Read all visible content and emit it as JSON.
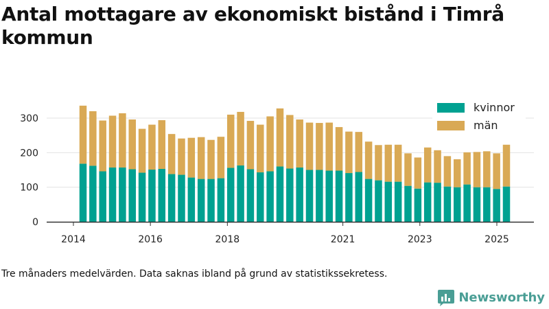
{
  "title": "Antal mottagare av ekonomiskt bistånd i Timrå kommun",
  "caption": "Tre månaders medelvärden. Data saknas ibland på grund av statistikssekretess.",
  "brand": {
    "name": "Newsworthy",
    "icon": "newsworthy-logo-icon"
  },
  "colors": {
    "kvinnor": "#00a191",
    "man": "#d9a955",
    "grid": "#e3e3e3",
    "axis": "#333333"
  },
  "chart_data": {
    "type": "bar",
    "stacked": true,
    "title": "Antal mottagare av ekonomiskt bistånd i Timrå kommun",
    "xlabel": "",
    "ylabel": "",
    "ylim": [
      0,
      350
    ],
    "yticks": [
      0,
      100,
      200,
      300
    ],
    "xticks": [
      "2014",
      "2016",
      "2018",
      "2021",
      "2023",
      "2025"
    ],
    "grid": true,
    "legend": "top-right",
    "categories": [
      "2014-Q2",
      "2014-Q3",
      "2014-Q4",
      "2015-Q1",
      "2015-Q2",
      "2015-Q3",
      "2015-Q4",
      "2016-Q1",
      "2016-Q2",
      "2016-Q3",
      "2016-Q4",
      "2017-Q1",
      "2017-Q2",
      "2017-Q3",
      "2017-Q4",
      "2018-Q1",
      "2018-Q2",
      "2018-Q3",
      "2018-Q4",
      "2019-Q1",
      "2019-Q2",
      "2019-Q3",
      "2019-Q4",
      "2020-Q1",
      "2020-Q2",
      "2020-Q3",
      "2020-Q4",
      "2021-Q1",
      "2021-Q2",
      "2021-Q3",
      "2021-Q4",
      "2022-Q1",
      "2022-Q2",
      "2022-Q3",
      "2022-Q4",
      "2023-Q1",
      "2023-Q2",
      "2023-Q3",
      "2023-Q4",
      "2024-Q1",
      "2024-Q2",
      "2024-Q3",
      "2024-Q4",
      "2025-Q1"
    ],
    "series": [
      {
        "name": "kvinnor",
        "values": [
          168,
          162,
          146,
          157,
          157,
          152,
          142,
          151,
          153,
          138,
          136,
          128,
          124,
          124,
          126,
          156,
          163,
          152,
          143,
          146,
          160,
          154,
          157,
          150,
          150,
          148,
          148,
          141,
          144,
          124,
          120,
          116,
          116,
          104,
          96,
          114,
          113,
          102,
          100,
          108,
          100,
          100,
          95,
          102
        ]
      },
      {
        "name": "män",
        "values": [
          168,
          158,
          147,
          150,
          157,
          144,
          127,
          130,
          141,
          116,
          105,
          115,
          121,
          113,
          120,
          154,
          155,
          140,
          138,
          159,
          168,
          155,
          139,
          137,
          136,
          139,
          126,
          120,
          116,
          108,
          102,
          107,
          107,
          94,
          90,
          101,
          94,
          88,
          81,
          93,
          102,
          104,
          103,
          121
        ]
      }
    ]
  }
}
